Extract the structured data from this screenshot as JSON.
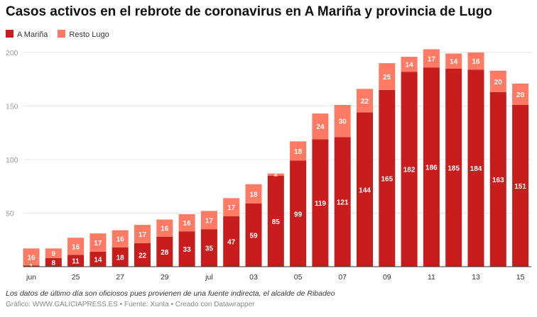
{
  "chart_data": {
    "type": "bar",
    "stacked": true,
    "title": "Casos activos en el rebrote de coronavirus en A Mariña y provincia de Lugo",
    "categories": [
      "23 jun",
      "24 jun",
      "25 jun",
      "26 jun",
      "27 jun",
      "28 jun",
      "29 jun",
      "30 jun",
      "1 jul",
      "2 jul",
      "3 jul",
      "4 jul",
      "5 jul",
      "6 jul",
      "7 jul",
      "8 jul",
      "9 jul",
      "10 jul",
      "11 jul",
      "12 jul",
      "13 jul",
      "14 jul",
      "15 jul"
    ],
    "tick_labels": [
      "jun",
      "25",
      "27",
      "29",
      "jul",
      "03",
      "05",
      "07",
      "09",
      "11",
      "13",
      "15"
    ],
    "series": [
      {
        "name": "A Mariña",
        "color": "#c71e1d",
        "values": [
          1,
          8,
          11,
          14,
          18,
          22,
          28,
          33,
          35,
          47,
          59,
          85,
          99,
          119,
          121,
          144,
          165,
          182,
          186,
          185,
          184,
          163,
          151
        ]
      },
      {
        "name": "Resto Lugo",
        "color": "#fd7a64",
        "values": [
          16,
          9,
          16,
          17,
          16,
          17,
          16,
          16,
          17,
          17,
          18,
          2,
          18,
          24,
          30,
          22,
          25,
          14,
          17,
          14,
          16,
          20,
          20
        ]
      }
    ],
    "yticks": [
      50,
      100,
      150,
      200
    ],
    "ylim": [
      0,
      200
    ],
    "grid": true,
    "legend": "top-left"
  },
  "footer": {
    "note": "Los datos de último día son oficiosos pues provienen de una fuente indirecta, el alcalde de Ribadeo",
    "credit": "Gráfico: WWW.GALICIAPRESS.ES • Fuente: Xunta • Creado con Datawrapper"
  }
}
